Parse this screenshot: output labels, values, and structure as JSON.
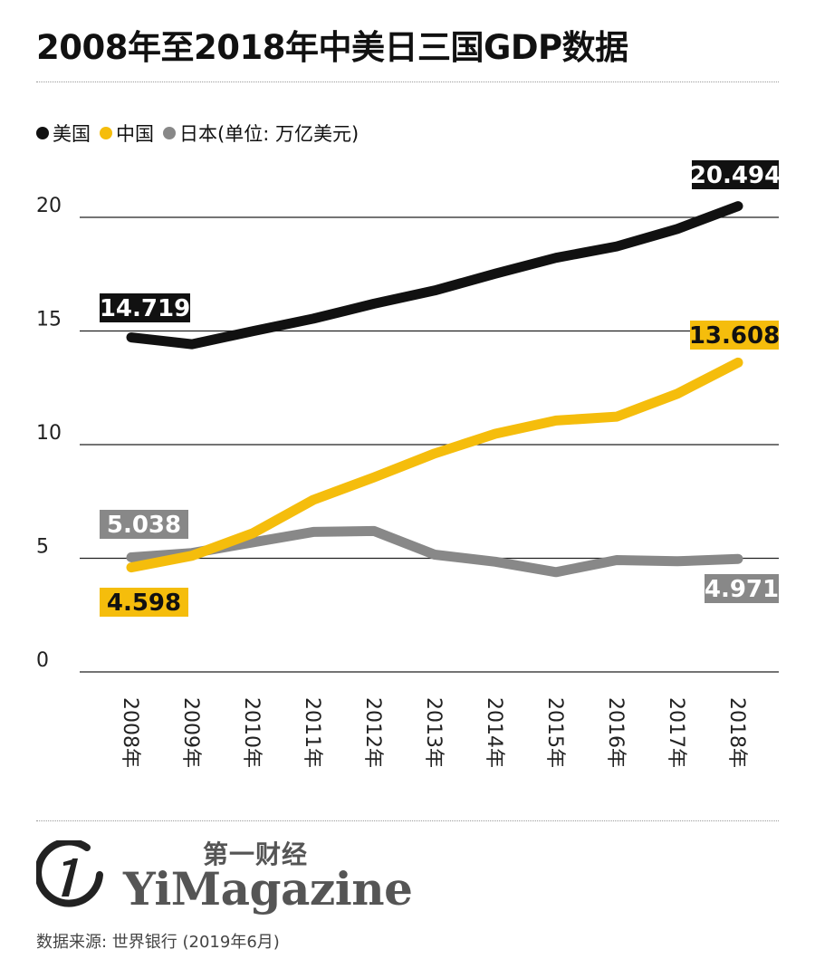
{
  "title": "2008年至2018年中美日三国GDP数据",
  "legend": {
    "items": [
      {
        "label": "美国",
        "color": "#111111"
      },
      {
        "label": "中国",
        "color": "#f5bd0c"
      },
      {
        "label": "日本",
        "color": "#888888"
      }
    ],
    "unit_note": "(单位: 万亿美元)"
  },
  "chart_data": {
    "type": "line",
    "x": [
      "2008年",
      "2009年",
      "2010年",
      "2011年",
      "2012年",
      "2013年",
      "2014年",
      "2015年",
      "2016年",
      "2017年",
      "2018年"
    ],
    "ylim": [
      0,
      22
    ],
    "yticks": [
      "0",
      "5",
      "10",
      "15",
      "20"
    ],
    "grid": true,
    "legend_placement": "top-left",
    "series": [
      {
        "name": "美国",
        "color": "#111111",
        "values": [
          14.719,
          14.42,
          14.99,
          15.54,
          16.2,
          16.78,
          17.52,
          18.22,
          18.72,
          19.49,
          20.494
        ],
        "start_label": "14.719",
        "end_label": "20.494"
      },
      {
        "name": "中国",
        "color": "#f5bd0c",
        "values": [
          4.598,
          5.11,
          6.1,
          7.57,
          8.56,
          9.61,
          10.48,
          11.06,
          11.23,
          12.24,
          13.608
        ],
        "start_label": "4.598",
        "end_label": "13.608"
      },
      {
        "name": "日本",
        "color": "#888888",
        "values": [
          5.038,
          5.23,
          5.7,
          6.16,
          6.2,
          5.16,
          4.85,
          4.39,
          4.92,
          4.87,
          4.971
        ],
        "start_label": "5.038",
        "end_label": "4.971"
      }
    ]
  },
  "footer": {
    "logo_cn": "第一财经",
    "logo_en": "YiMagazine",
    "source": "数据来源: 世界银行 (2019年6月)"
  }
}
